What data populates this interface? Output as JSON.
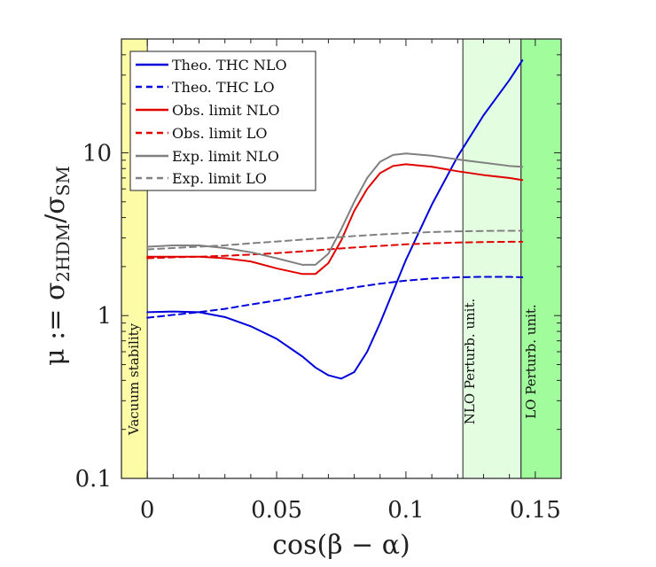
{
  "chart_data": {
    "type": "line",
    "xlabel": "cos(β − α)",
    "ylabel": "μ := σ_2HDM / σ_SM",
    "ylabel_main": "μ := σ",
    "ylabel_sub1": "2HDM",
    "ylabel_slash": "/σ",
    "ylabel_sub2": "SM",
    "xlim": [
      -0.01,
      0.16
    ],
    "ylim": [
      0.1,
      50
    ],
    "yscale": "log",
    "xticks": [
      0,
      0.05,
      0.1,
      0.15
    ],
    "xtick_labels": [
      "0",
      "0.05",
      "0.1",
      "0.15"
    ],
    "yticks": [
      0.1,
      1,
      10
    ],
    "ytick_labels": [
      "0.1",
      "1",
      "10"
    ],
    "legend_position": "top-left",
    "regions": [
      {
        "name": "vacuum",
        "label": "Vacuum stability",
        "x0": -0.01,
        "x1": 0.0,
        "color": "#fdfca6"
      },
      {
        "name": "nlo-pert",
        "label": "NLO Perturb. unit.",
        "x0": 0.122,
        "x1": 0.1445,
        "color": "#e3fde0"
      },
      {
        "name": "lo-pert",
        "label": "LO Perturb. unit.",
        "x0": 0.1445,
        "x1": 0.16,
        "color": "#a1fd9b"
      }
    ],
    "series": [
      {
        "name": "Theo. THC NLO",
        "color": "#0000dd",
        "dash": false,
        "x": [
          0,
          0.01,
          0.02,
          0.03,
          0.04,
          0.05,
          0.06,
          0.065,
          0.07,
          0.075,
          0.08,
          0.085,
          0.09,
          0.1,
          0.11,
          0.12,
          0.13,
          0.14,
          0.145
        ],
        "y": [
          1.05,
          1.06,
          1.05,
          0.98,
          0.86,
          0.72,
          0.56,
          0.48,
          0.43,
          0.41,
          0.45,
          0.6,
          0.9,
          2.2,
          4.8,
          9.5,
          17,
          28,
          37
        ]
      },
      {
        "name": "Theo. THC LO",
        "color": "#0000dd",
        "dash": true,
        "x": [
          0,
          0.01,
          0.02,
          0.03,
          0.04,
          0.05,
          0.06,
          0.07,
          0.08,
          0.09,
          0.1,
          0.11,
          0.12,
          0.13,
          0.14,
          0.145
        ],
        "y": [
          0.97,
          1.01,
          1.05,
          1.1,
          1.17,
          1.24,
          1.32,
          1.4,
          1.49,
          1.57,
          1.64,
          1.69,
          1.72,
          1.73,
          1.73,
          1.72
        ]
      },
      {
        "name": "Obs. limit NLO",
        "color": "#e10000",
        "dash": false,
        "x": [
          0,
          0.01,
          0.02,
          0.03,
          0.04,
          0.05,
          0.06,
          0.065,
          0.07,
          0.075,
          0.08,
          0.085,
          0.09,
          0.095,
          0.1,
          0.11,
          0.12,
          0.13,
          0.14,
          0.145
        ],
        "y": [
          2.3,
          2.3,
          2.3,
          2.25,
          2.15,
          1.95,
          1.8,
          1.8,
          2.1,
          2.9,
          4.4,
          6.0,
          7.5,
          8.3,
          8.5,
          8.2,
          7.7,
          7.3,
          7.0,
          6.8
        ]
      },
      {
        "name": "Obs. limit LO",
        "color": "#e10000",
        "dash": true,
        "x": [
          0,
          0.01,
          0.02,
          0.03,
          0.04,
          0.05,
          0.06,
          0.07,
          0.08,
          0.09,
          0.1,
          0.11,
          0.12,
          0.13,
          0.14,
          0.145
        ],
        "y": [
          2.25,
          2.28,
          2.3,
          2.33,
          2.37,
          2.42,
          2.48,
          2.55,
          2.62,
          2.68,
          2.74,
          2.78,
          2.81,
          2.83,
          2.84,
          2.84
        ]
      },
      {
        "name": "Exp. limit NLO",
        "color": "#808080",
        "dash": false,
        "x": [
          0,
          0.01,
          0.02,
          0.03,
          0.04,
          0.05,
          0.06,
          0.065,
          0.07,
          0.075,
          0.08,
          0.085,
          0.09,
          0.095,
          0.1,
          0.11,
          0.12,
          0.13,
          0.14,
          0.145
        ],
        "y": [
          2.65,
          2.7,
          2.7,
          2.6,
          2.45,
          2.25,
          2.05,
          2.05,
          2.4,
          3.4,
          5.0,
          7.0,
          8.8,
          9.7,
          9.9,
          9.6,
          9.1,
          8.7,
          8.3,
          8.2
        ]
      },
      {
        "name": "Exp. limit LO",
        "color": "#808080",
        "dash": true,
        "x": [
          0,
          0.01,
          0.02,
          0.03,
          0.04,
          0.05,
          0.06,
          0.07,
          0.08,
          0.09,
          0.1,
          0.11,
          0.12,
          0.13,
          0.14,
          0.145
        ],
        "y": [
          2.55,
          2.6,
          2.65,
          2.7,
          2.78,
          2.85,
          2.93,
          3.0,
          3.08,
          3.15,
          3.21,
          3.26,
          3.29,
          3.31,
          3.32,
          3.32
        ]
      }
    ]
  }
}
